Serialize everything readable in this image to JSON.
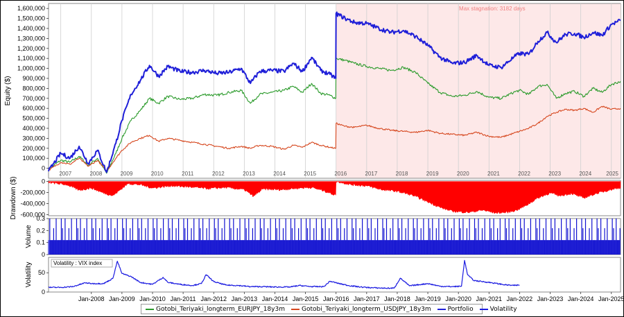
{
  "colors": {
    "portfolio": "#1f1fd8",
    "eurjpy": "#2a9a2a",
    "usdjpy": "#d6471e",
    "drawdown": "#ff0000",
    "volume": "#1010d0",
    "volatility": "#1a1ae0",
    "stagnation_fill": "#fde8e8",
    "stagnation_text": "#f08080",
    "grid": "#cfcfcf"
  },
  "chart_data": [
    {
      "type": "line",
      "panel": "equity",
      "ylabel": "Equity ($)",
      "ylim": [
        -100000,
        1650000
      ],
      "yticks": [
        "0",
        "100,000",
        "200,000",
        "300,000",
        "400,000",
        "500,000",
        "600,000",
        "700,000",
        "800,000",
        "900,000",
        "1,000,000",
        "1,100,000",
        "1,200,000",
        "1,300,000",
        "1,400,000",
        "1,500,000",
        "1,600,000"
      ],
      "ytick_values": [
        0,
        100000,
        200000,
        300000,
        400000,
        500000,
        600000,
        700000,
        800000,
        900000,
        1000000,
        1100000,
        1200000,
        1300000,
        1400000,
        1500000,
        1600000
      ],
      "year_labels": [
        "2007",
        "2008",
        "2009",
        "2010",
        "2011",
        "2012",
        "2013",
        "2014",
        "2015",
        "2016",
        "2017",
        "2018",
        "2019",
        "2020",
        "2021",
        "2022",
        "2023",
        "2024",
        "2025"
      ],
      "annotation": "Max stagnation: 3182 days",
      "stagnation_start": 2016.0,
      "x": [
        2006.6,
        2007.0,
        2007.3,
        2007.6,
        2007.9,
        2008.2,
        2008.5,
        2008.8,
        2009.0,
        2009.3,
        2009.6,
        2009.9,
        2010.2,
        2010.5,
        2010.9,
        2011.3,
        2011.7,
        2012.1,
        2012.5,
        2012.9,
        2013.2,
        2013.5,
        2013.9,
        2014.3,
        2014.6,
        2014.9,
        2015.2,
        2015.5,
        2015.8,
        2015.99,
        2016.0,
        2016.3,
        2016.6,
        2017.0,
        2017.4,
        2017.8,
        2018.2,
        2018.6,
        2019.0,
        2019.4,
        2019.8,
        2020.2,
        2020.6,
        2021.0,
        2021.4,
        2021.8,
        2022.0,
        2022.3,
        2022.6,
        2022.9,
        2023.2,
        2023.5,
        2023.8,
        2024.1,
        2024.4,
        2024.7,
        2025.0,
        2025.3
      ],
      "series": [
        {
          "name": "Gotobi_Teriyaki_longterm_EURJPY_18y3m",
          "values": [
            -10000,
            80000,
            60000,
            120000,
            30000,
            100000,
            -50000,
            150000,
            300000,
            480000,
            580000,
            700000,
            650000,
            720000,
            690000,
            700000,
            740000,
            730000,
            760000,
            780000,
            650000,
            740000,
            760000,
            780000,
            820000,
            760000,
            850000,
            750000,
            730000,
            700000,
            1100000,
            1080000,
            1050000,
            1020000,
            1000000,
            980000,
            1010000,
            960000,
            850000,
            760000,
            720000,
            730000,
            770000,
            710000,
            700000,
            760000,
            780000,
            740000,
            820000,
            840000,
            700000,
            750000,
            770000,
            720000,
            800000,
            760000,
            840000,
            870000
          ]
        },
        {
          "name": "Gotobi_Teriyaki_longterm_USDJPY_18y3m",
          "values": [
            -20000,
            60000,
            40000,
            100000,
            20000,
            80000,
            -30000,
            100000,
            180000,
            260000,
            300000,
            330000,
            270000,
            300000,
            280000,
            260000,
            240000,
            220000,
            200000,
            220000,
            200000,
            230000,
            220000,
            190000,
            230000,
            210000,
            260000,
            230000,
            210000,
            200000,
            450000,
            420000,
            410000,
            430000,
            400000,
            380000,
            370000,
            360000,
            380000,
            350000,
            340000,
            330000,
            360000,
            320000,
            310000,
            350000,
            370000,
            400000,
            450000,
            520000,
            560000,
            590000,
            580000,
            600000,
            560000,
            620000,
            590000,
            600000
          ]
        },
        {
          "name": "Portfolio",
          "values": [
            -30000,
            150000,
            100000,
            220000,
            50000,
            180000,
            -40000,
            250000,
            480000,
            740000,
            880000,
            1030000,
            920000,
            1020000,
            970000,
            960000,
            980000,
            950000,
            960000,
            1000000,
            850000,
            970000,
            980000,
            970000,
            1050000,
            970000,
            1110000,
            980000,
            940000,
            900000,
            1550000,
            1500000,
            1460000,
            1450000,
            1400000,
            1360000,
            1380000,
            1320000,
            1230000,
            1110000,
            1050000,
            1060000,
            1130000,
            1030000,
            1010000,
            1110000,
            1150000,
            1140000,
            1270000,
            1360000,
            1260000,
            1340000,
            1350000,
            1310000,
            1360000,
            1330000,
            1440000,
            1480000
          ]
        }
      ]
    },
    {
      "type": "area",
      "panel": "drawdown",
      "ylabel": "Drawdown ($)",
      "ylim": [
        -620000,
        20000
      ],
      "yticks": [
        "0",
        "-200,000",
        "-400,000",
        "-600,000"
      ],
      "ytick_values": [
        0,
        -200000,
        -400000,
        -600000
      ],
      "x": [
        2006.6,
        2007.2,
        2007.6,
        2008.0,
        2008.3,
        2008.7,
        2009.2,
        2009.6,
        2010.0,
        2010.6,
        2011.2,
        2011.8,
        2012.4,
        2013.0,
        2013.3,
        2013.6,
        2014.2,
        2014.8,
        2015.2,
        2015.6,
        2015.99,
        2016.0,
        2016.5,
        2017.0,
        2017.5,
        2018.0,
        2018.5,
        2019.0,
        2019.4,
        2019.8,
        2020.3,
        2020.8,
        2021.2,
        2021.6,
        2021.9,
        2022.2,
        2022.6,
        2023.0,
        2023.3,
        2023.7,
        2024.1,
        2024.5,
        2024.9,
        2025.3
      ],
      "values": [
        -20000,
        -60000,
        -160000,
        -120000,
        -190000,
        -260000,
        -40000,
        -60000,
        -120000,
        -80000,
        -100000,
        -130000,
        -110000,
        -150000,
        -270000,
        -140000,
        -150000,
        -120000,
        -110000,
        -170000,
        -250000,
        0,
        -60000,
        -80000,
        -150000,
        -180000,
        -250000,
        -370000,
        -470000,
        -540000,
        -560000,
        -520000,
        -570000,
        -560000,
        -520000,
        -440000,
        -300000,
        -210000,
        -260000,
        -220000,
        -300000,
        -220000,
        -160000,
        -110000
      ]
    },
    {
      "type": "bar",
      "panel": "volume",
      "ylabel": "Volume",
      "ylim": [
        0,
        0.3
      ],
      "yticks": [
        "0",
        "0.1",
        "0.2",
        "0.3"
      ],
      "ytick_values": [
        0,
        0.1,
        0.2,
        0.3
      ],
      "bar_period_years": 0.0417,
      "pattern": [
        0.12,
        0.3,
        0.12,
        0.12,
        0.22,
        0.12,
        0.3,
        0.12,
        0.12,
        0.12,
        0.3,
        0.22
      ],
      "x_start": 2006.6,
      "x_end": 2025.3
    },
    {
      "type": "line",
      "panel": "volatility",
      "ylabel": "Volatility",
      "ylim": [
        0,
        90
      ],
      "yticks": [
        "0",
        "50"
      ],
      "ytick_values": [
        0,
        50
      ],
      "legend_box": "Volatility : VIX index",
      "x": [
        2006.6,
        2007.0,
        2007.4,
        2007.8,
        2008.0,
        2008.4,
        2008.7,
        2008.85,
        2009.0,
        2009.3,
        2009.6,
        2010.0,
        2010.35,
        2010.5,
        2010.9,
        2011.3,
        2011.6,
        2011.75,
        2012.0,
        2012.4,
        2012.8,
        2013.2,
        2013.6,
        2014.0,
        2014.5,
        2014.8,
        2015.2,
        2015.6,
        2015.8,
        2016.1,
        2016.4,
        2016.8,
        2017.2,
        2017.6,
        2017.9,
        2018.1,
        2018.4,
        2018.8,
        2019.0,
        2019.4,
        2019.8,
        2020.1,
        2020.2,
        2020.3,
        2020.5,
        2020.8,
        2021.1,
        2021.5,
        2021.8,
        2022.0
      ],
      "values": [
        12,
        12,
        14,
        24,
        22,
        22,
        35,
        80,
        48,
        40,
        25,
        20,
        38,
        25,
        20,
        17,
        22,
        45,
        27,
        18,
        17,
        14,
        14,
        13,
        13,
        17,
        14,
        14,
        28,
        22,
        17,
        13,
        11,
        10,
        10,
        36,
        16,
        20,
        22,
        15,
        14,
        15,
        82,
        45,
        30,
        27,
        24,
        19,
        17,
        18
      ]
    }
  ],
  "x_axis": {
    "tick_labels": [
      "Jan-2008",
      "Jan-2009",
      "Jan-2010",
      "Jan-2011",
      "Jan-2012",
      "Jan-2013",
      "Jan-2014",
      "Jan-2015",
      "Jan-2016",
      "Jan-2017",
      "Jan-2018",
      "Jan-2019",
      "Jan-2020",
      "Jan-2021",
      "Jan-2022",
      "Jan-2023",
      "Jan-2024",
      "Jan-2025"
    ],
    "tick_values": [
      2008,
      2009,
      2010,
      2011,
      2012,
      2013,
      2014,
      2015,
      2016,
      2017,
      2018,
      2019,
      2020,
      2021,
      2022,
      2023,
      2024,
      2025
    ]
  },
  "legend": {
    "items": [
      {
        "label": "Gotobi_Teriyaki_longterm_EURJPY_18y3m",
        "color_key": "eurjpy"
      },
      {
        "label": "Gotobi_Teriyaki_longterm_USDJPY_18y3m",
        "color_key": "usdjpy"
      },
      {
        "label": "Portfolio",
        "color_key": "portfolio"
      },
      {
        "label": "Volatility",
        "color_key": "volatility"
      }
    ]
  }
}
